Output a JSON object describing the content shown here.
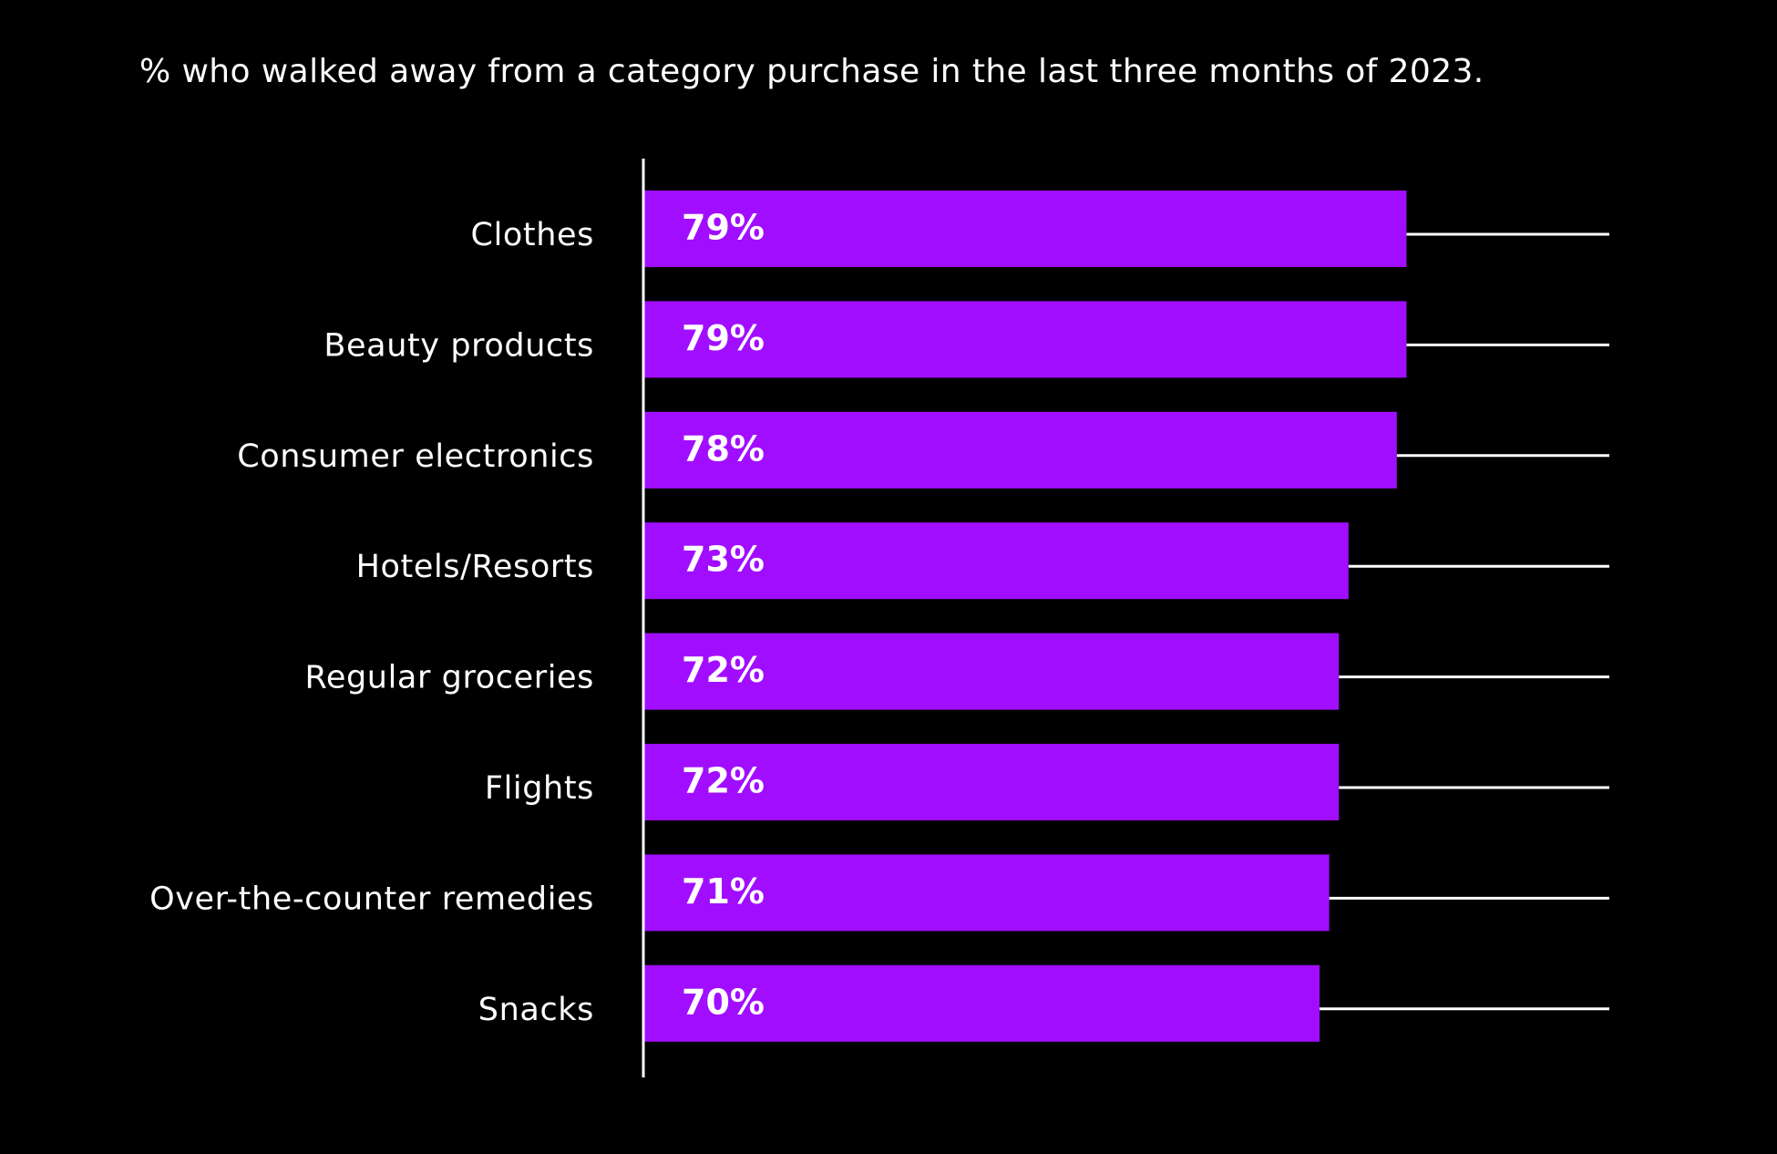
{
  "chart_data": {
    "type": "bar",
    "orientation": "horizontal",
    "title": "% who walked away from a category purchase in the last three months of 2023.",
    "categories": [
      "Clothes",
      "Beauty products",
      "Consumer electronics",
      "Hotels/Resorts",
      "Regular groceries",
      "Flights",
      "Over-the-counter remedies",
      "Snacks"
    ],
    "values": [
      79,
      79,
      78,
      73,
      72,
      72,
      71,
      70
    ],
    "value_labels": [
      "79%",
      "79%",
      "78%",
      "73%",
      "72%",
      "72%",
      "71%",
      "70%"
    ],
    "xlim": [
      0,
      100
    ],
    "colors": {
      "bar": "#a10eff",
      "background": "#000000",
      "text": "#ffffff",
      "track_line": "#ffffff",
      "axis": "#ffffff"
    },
    "grid": false,
    "legend": "none"
  }
}
